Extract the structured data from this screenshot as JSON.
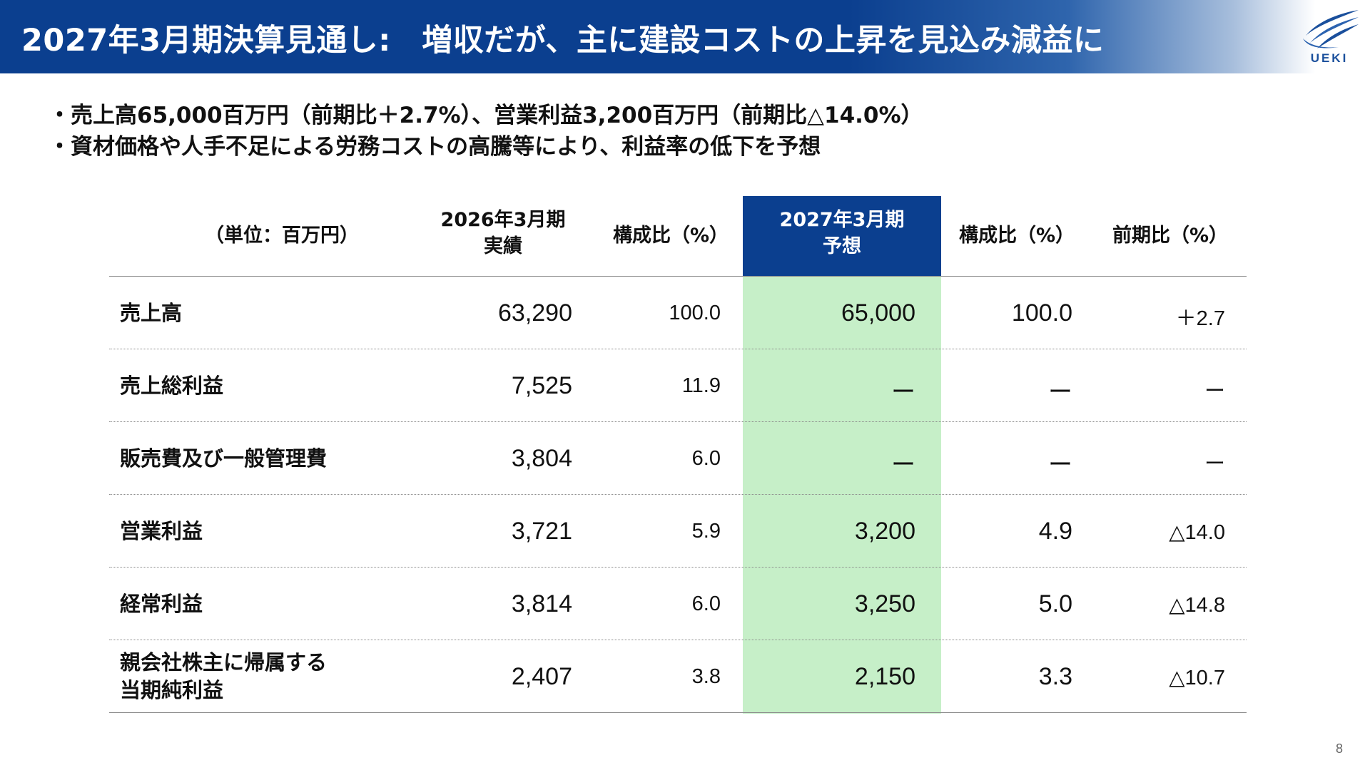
{
  "header": {
    "title": "2027年3月期決算見通し:　増収だが、主に建設コストの上昇を見込み減益に",
    "logo_text": "UEKI",
    "logo_icon": "ueki-wave-logo-icon"
  },
  "bullets": [
    "・売上高65,000百万円（前期比＋2.7%）、営業利益3,200百万円（前期比△14.0%）",
    "・資材価格や人手不足による労務コストの高騰等により、利益率の低下を予想"
  ],
  "table": {
    "unit_label": "（単位：百万円）",
    "columns": [
      {
        "line1": "2026年3月期",
        "line2": "実績"
      },
      {
        "line1": "構成比（%）",
        "line2": ""
      },
      {
        "line1": "2027年3月期",
        "line2": "予想"
      },
      {
        "line1": "構成比（%）",
        "line2": ""
      },
      {
        "line1": "前期比（%）",
        "line2": ""
      }
    ],
    "rows": [
      {
        "label1": "売上高",
        "label2": "",
        "values": [
          "63,290",
          "100.0",
          "65,000",
          "100.0",
          "＋2.7"
        ]
      },
      {
        "label1": "売上総利益",
        "label2": "",
        "values": [
          "7,525",
          "11.9",
          "ー",
          "ー",
          "ー"
        ]
      },
      {
        "label1": "販売費及び一般管理費",
        "label2": "",
        "values": [
          "3,804",
          "6.0",
          "ー",
          "ー",
          "ー"
        ]
      },
      {
        "label1": "営業利益",
        "label2": "",
        "values": [
          "3,721",
          "5.9",
          "3,200",
          "4.9",
          "△14.0"
        ]
      },
      {
        "label1": "経常利益",
        "label2": "",
        "values": [
          "3,814",
          "6.0",
          "3,250",
          "5.0",
          "△14.8"
        ]
      },
      {
        "label1": "親会社株主に帰属する",
        "label2": "当期純利益",
        "values": [
          "2,407",
          "3.8",
          "2,150",
          "3.3",
          "△10.7"
        ]
      }
    ],
    "highlight_color": "#c6efc8",
    "header_highlight_color": "#0b3f8f"
  },
  "page_number": "8",
  "colors": {
    "brand_blue": "#0b3f8f"
  }
}
